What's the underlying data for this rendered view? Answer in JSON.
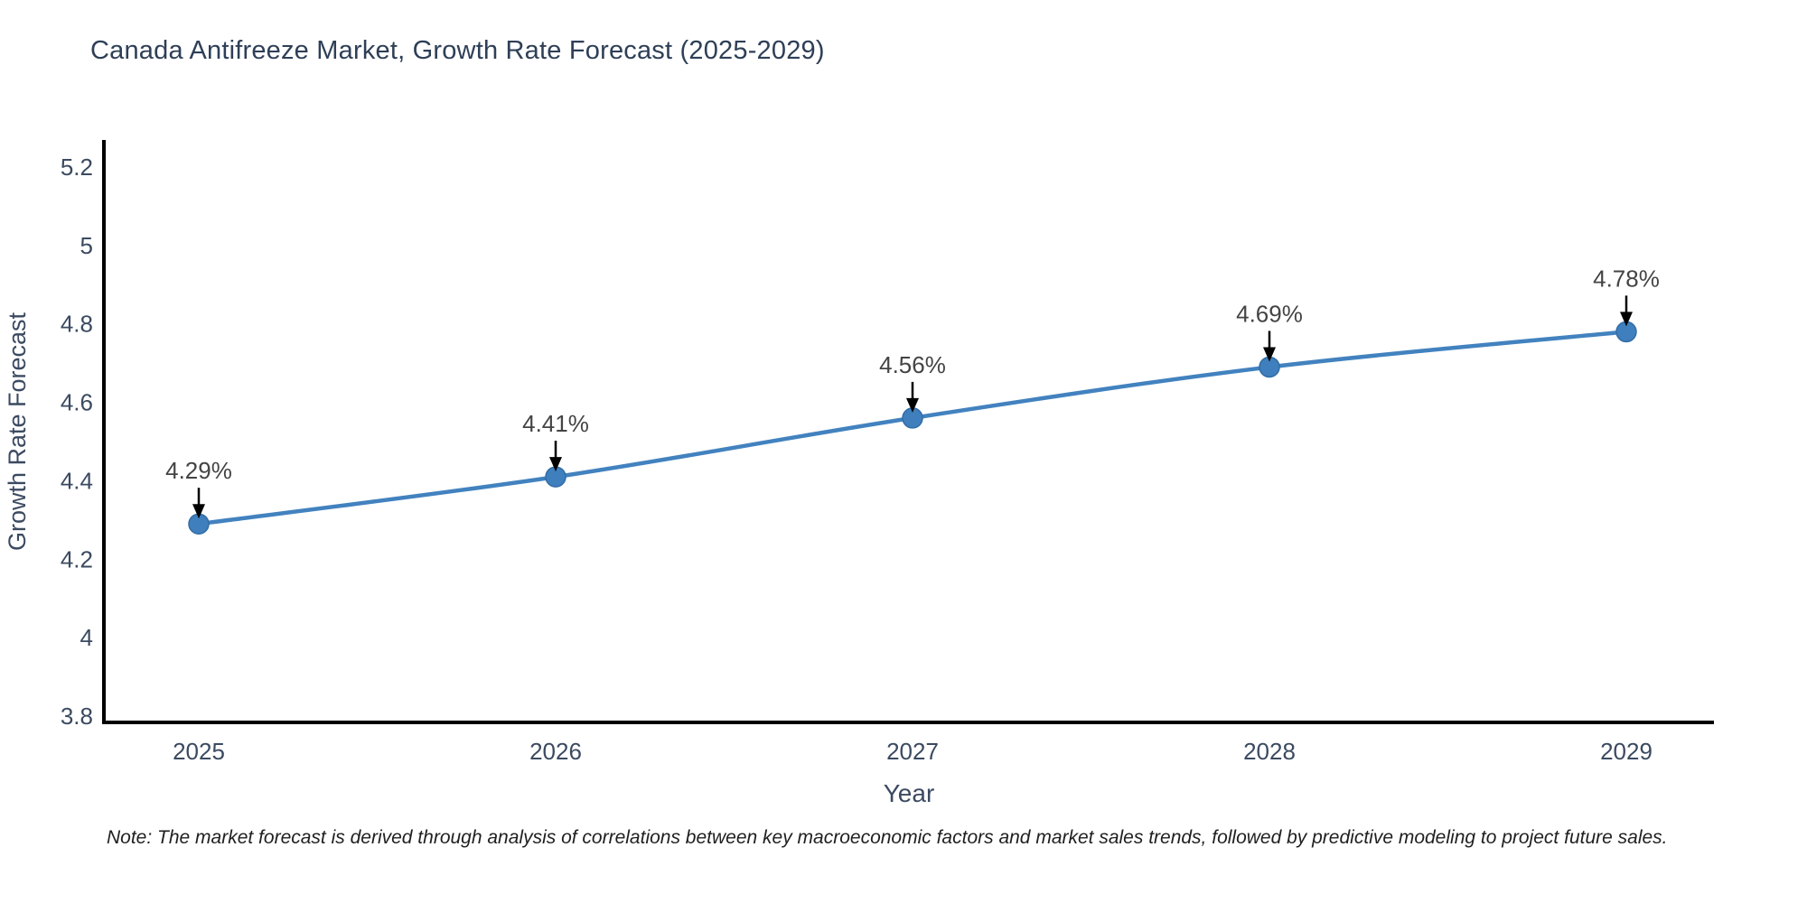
{
  "title": "Canada Antifreeze Market, Growth Rate Forecast (2025-2029)",
  "note": "Note: The market forecast is derived through analysis of correlations between key macroeconomic factors and market sales trends, followed by predictive modeling to project future sales.",
  "chart_data": {
    "type": "line",
    "title": "Canada Antifreeze Market, Growth Rate Forecast (2025-2029)",
    "xlabel": "Year",
    "ylabel": "Growth Rate Forecast",
    "x": [
      2025,
      2026,
      2027,
      2028,
      2029
    ],
    "y": [
      4.29,
      4.41,
      4.56,
      4.69,
      4.78
    ],
    "annotations": [
      "4.29%",
      "4.41%",
      "4.56%",
      "4.69%",
      "4.78%"
    ],
    "xtick_labels": [
      "2025",
      "2026",
      "2027",
      "2028",
      "2029"
    ],
    "yticks": [
      3.8,
      4.0,
      4.2,
      4.4,
      4.6,
      4.8,
      5.0,
      5.2
    ],
    "ytick_labels": [
      "3.8",
      "4",
      "4.2",
      "4.4",
      "4.6",
      "4.8",
      "5",
      "5.2"
    ],
    "ylim": [
      3.78,
      5.27
    ],
    "grid": false,
    "legend": "none",
    "colors": {
      "line": "#4282bf",
      "marker": "#3f7fbd",
      "marker_edge": "#336da6",
      "axis": "#000000",
      "tick_text": "#3b4a61",
      "axis_title_text": "#3b4a61",
      "title_text": "#2e3f57",
      "annotation_text": "#444444",
      "arrow": "#000000",
      "background": "#ffffff"
    }
  }
}
